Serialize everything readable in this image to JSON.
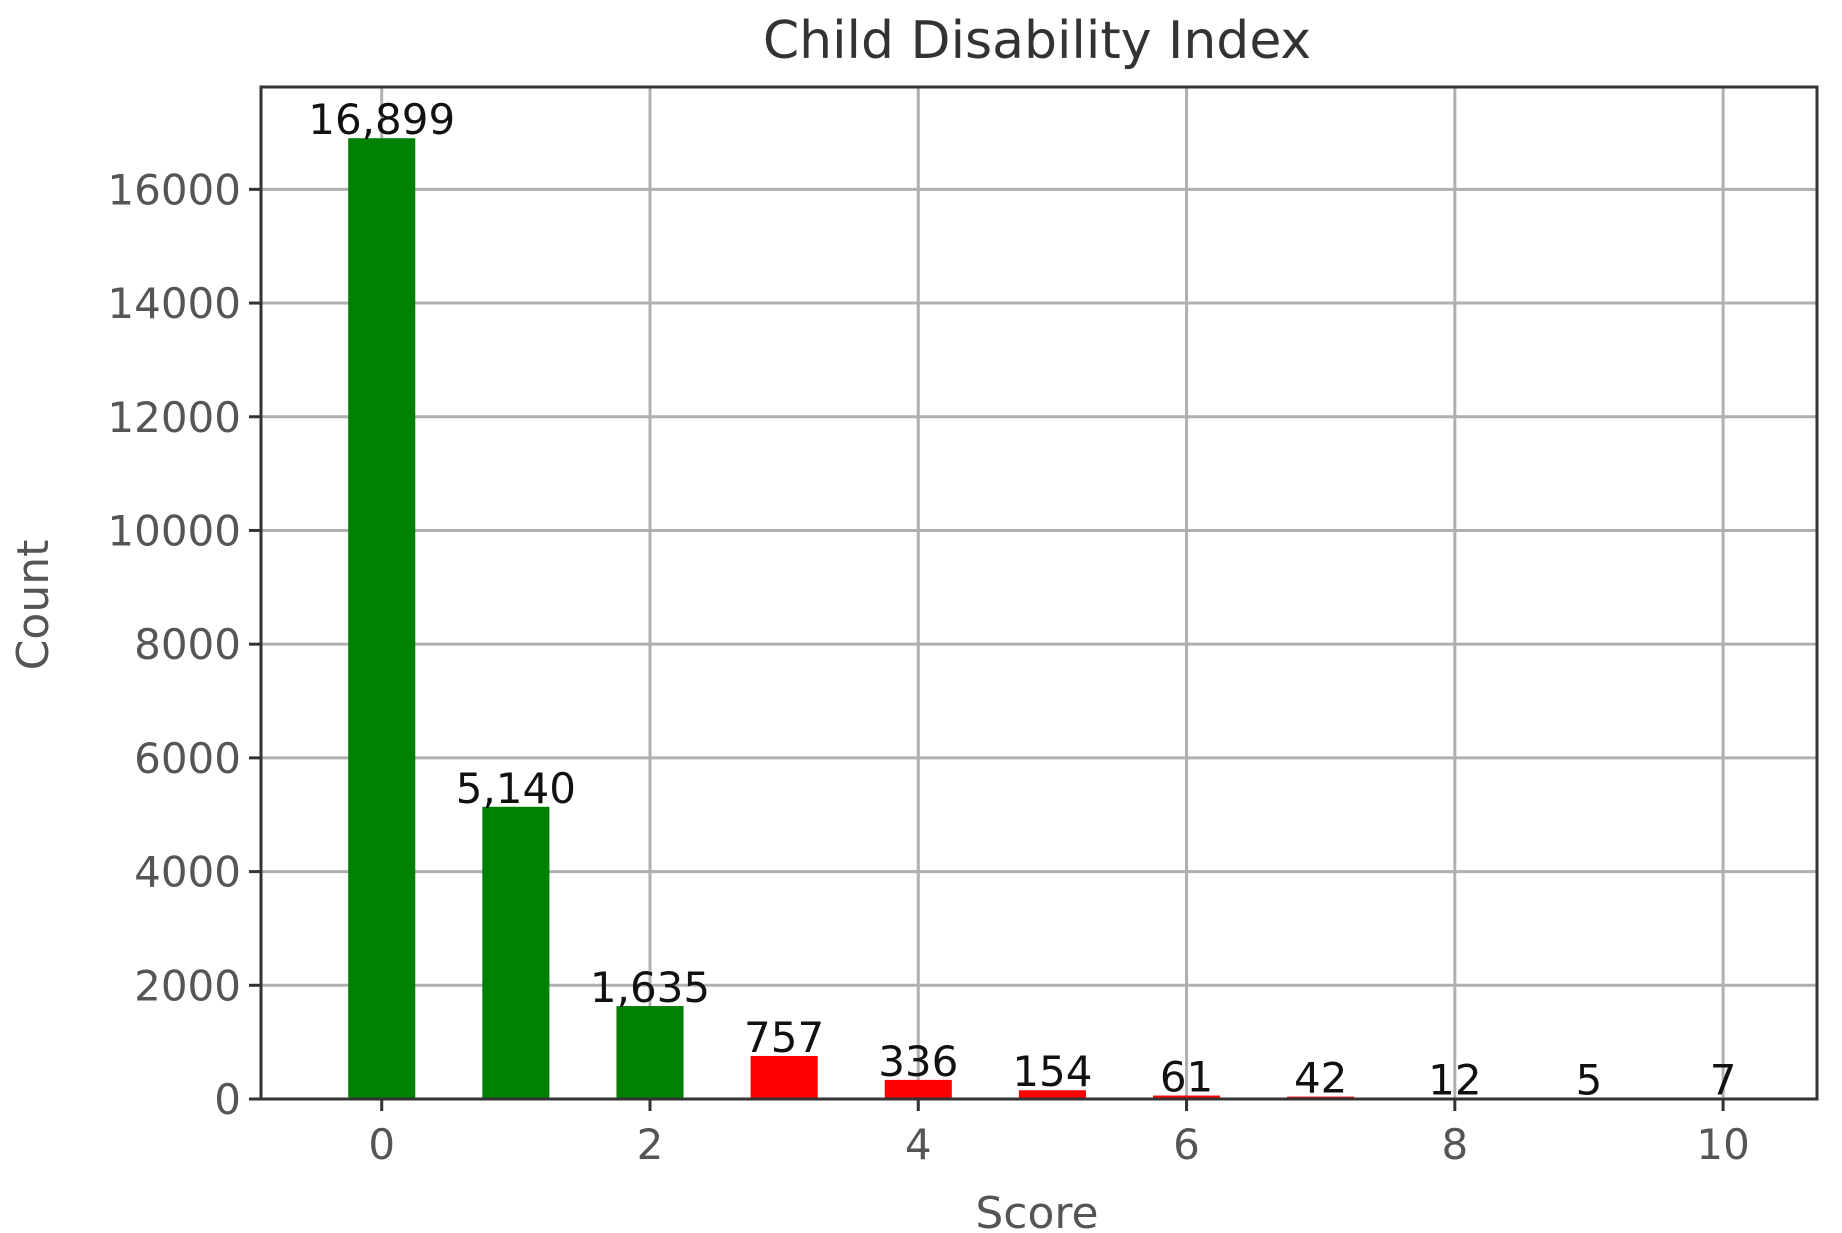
{
  "chart_data": {
    "type": "bar",
    "title": "Child Disability Index",
    "xlabel": "Score",
    "ylabel": "Count",
    "x": [
      0,
      1,
      2,
      3,
      4,
      5,
      6,
      7,
      8,
      9,
      10
    ],
    "values": [
      16899,
      5140,
      1635,
      757,
      336,
      154,
      61,
      42,
      12,
      5,
      7
    ],
    "value_labels": [
      "16,899",
      "5,140",
      "1,635",
      "757",
      "336",
      "154",
      "61",
      "42",
      "12",
      "5",
      "7"
    ],
    "bar_colors": [
      "#008000",
      "#008000",
      "#008000",
      "#ff0000",
      "#ff0000",
      "#ff0000",
      "#ff0000",
      "#ff0000",
      "#ff0000",
      "#ff0000",
      "#ff0000"
    ],
    "xlim": [
      -0.9,
      10.7
    ],
    "ylim": [
      0,
      17800
    ],
    "xticks": [
      0,
      2,
      4,
      6,
      8,
      10
    ],
    "xtick_labels": [
      "0",
      "2",
      "4",
      "6",
      "8",
      "10"
    ],
    "yticks": [
      0,
      2000,
      4000,
      6000,
      8000,
      10000,
      12000,
      14000,
      16000
    ],
    "ytick_labels": [
      "0",
      "2000",
      "4000",
      "6000",
      "8000",
      "10000",
      "12000",
      "14000",
      "16000"
    ],
    "grid": true
  }
}
